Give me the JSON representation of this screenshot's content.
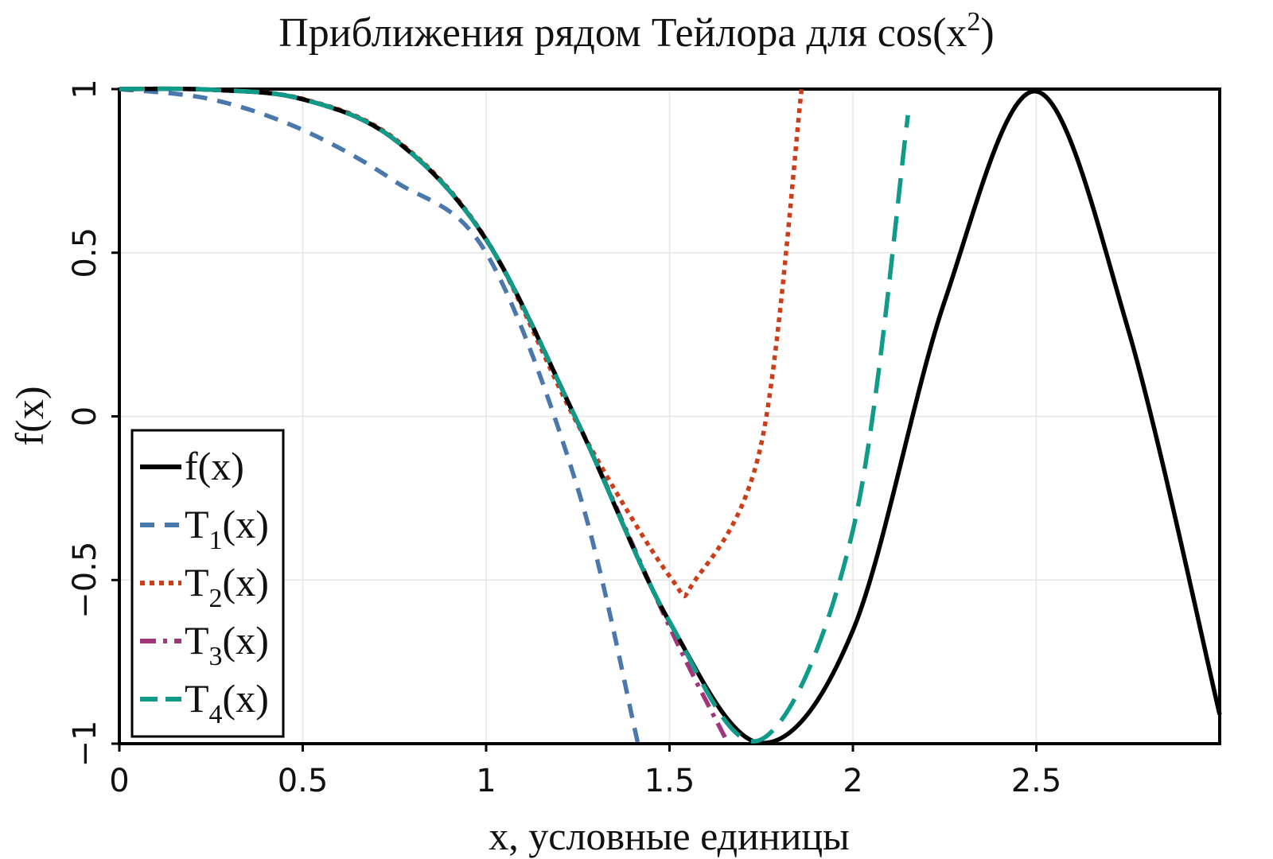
{
  "chart_data": {
    "type": "line",
    "title": "Приближения рядом Тейлора для cos(x²)",
    "title_main": "Приближения рядом Тейлора для cos(x",
    "title_sup": "2",
    "title_end": ")",
    "xlabel": "x, условные единицы",
    "ylabel": "f(x)",
    "xlim": [
      0,
      3
    ],
    "ylim": [
      -1,
      1
    ],
    "xticks": [
      0,
      0.5,
      1,
      1.5,
      2,
      2.5
    ],
    "xtick_labels": [
      "0",
      "0.5",
      "1",
      "1.5",
      "2",
      "2.5"
    ],
    "yticks": [
      -1,
      -0.5,
      0,
      0.5,
      1
    ],
    "ytick_labels": [
      "−1",
      "−0.5",
      "0",
      "0.5",
      "1"
    ],
    "grid": true,
    "legend_position": "bottom-left",
    "series": [
      {
        "name": "f(x)",
        "base": "f",
        "sub": "",
        "rest": "(x)",
        "color": "#000000",
        "dash": "solid",
        "x": [
          0,
          0.25,
          0.5,
          0.75,
          1,
          1.25,
          1.5,
          1.75,
          2,
          2.25,
          2.5,
          2.75,
          3
        ],
        "y": [
          1,
          0.998,
          0.969,
          0.846,
          0.54,
          -0.019,
          -0.628,
          -0.998,
          -0.654,
          0.352,
          0.993,
          0.267,
          -0.911
        ]
      },
      {
        "name": "T1(x)",
        "base": "T",
        "sub": "1",
        "rest": "(x)",
        "color": "#4a78ac",
        "dash": "dashed",
        "x": [
          0,
          0.25,
          0.5,
          0.75,
          1,
          1.25,
          1.414
        ],
        "y": [
          1,
          0.969,
          0.875,
          0.719,
          0.5,
          -0.221,
          -1
        ]
      },
      {
        "name": "T2(x)",
        "base": "T",
        "sub": "2",
        "rest": "(x)",
        "color": "#cc3d18",
        "dash": "dotted",
        "x": [
          0,
          0.25,
          0.5,
          0.75,
          1,
          1.25,
          1.5,
          1.57,
          1.75,
          1.86
        ],
        "y": [
          1,
          0.998,
          0.97,
          0.849,
          0.542,
          -0.025,
          -0.488,
          -0.5,
          -0.084,
          1
        ]
      },
      {
        "name": "T3(x)",
        "base": "T",
        "sub": "3",
        "rest": "(x)",
        "color": "#a3357a",
        "dash": "dashdot",
        "x": [
          0,
          0.25,
          0.5,
          0.75,
          1,
          1.25,
          1.5,
          1.66
        ],
        "y": [
          1,
          0.998,
          0.969,
          0.846,
          0.54,
          -0.019,
          -0.643,
          -1
        ]
      },
      {
        "name": "T4(x)",
        "base": "T",
        "sub": "4",
        "rest": "(x)",
        "color": "#0f9a8a",
        "dash": "longdash",
        "x": [
          0,
          0.25,
          0.5,
          0.75,
          1,
          1.25,
          1.5,
          1.75,
          2,
          2.15
        ],
        "y": [
          1,
          0.998,
          0.969,
          0.846,
          0.54,
          -0.019,
          -0.627,
          -0.987,
          -0.348,
          0.92
        ]
      }
    ]
  }
}
